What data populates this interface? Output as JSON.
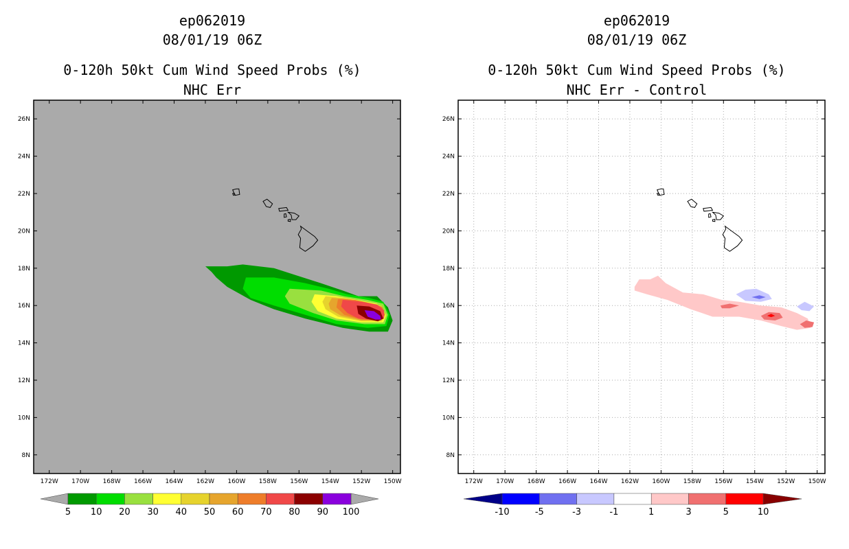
{
  "left_panel": {
    "title_line1": "ep062019",
    "title_line2": "08/01/19 06Z",
    "title_line3": "0-120h 50kt Cum Wind Speed Probs (%)",
    "title_line4": "NHC Err"
  },
  "right_panel": {
    "title_line1": "ep062019",
    "title_line2": "08/01/19 06Z",
    "title_line3": "0-120h 50kt Cum Wind Speed Probs (%)",
    "title_line4": "NHC Err - Control"
  },
  "chart_data": [
    {
      "type": "heatmap",
      "title": "0-120h 50kt Cum Wind Speed Probs (%)",
      "subtitle": "NHC Err",
      "storm": "ep062019",
      "time": "08/01/19 06Z",
      "background_color": "#aaaaaa",
      "xlim": [
        -173,
        -149.5
      ],
      "ylim": [
        7,
        27
      ],
      "x_ticks": [
        "172W",
        "170W",
        "168W",
        "166W",
        "164W",
        "162W",
        "160W",
        "158W",
        "156W",
        "154W",
        "152W",
        "150W"
      ],
      "y_ticks": [
        "8N",
        "10N",
        "12N",
        "14N",
        "16N",
        "18N",
        "20N",
        "22N",
        "24N",
        "26N"
      ],
      "grid": false,
      "colorbar": {
        "levels": [
          "5",
          "10",
          "20",
          "30",
          "40",
          "50",
          "60",
          "70",
          "80",
          "90",
          "100"
        ],
        "colors": [
          "#009900",
          "#00dd00",
          "#99e03f",
          "#ffff33",
          "#e6d32d",
          "#e6a52d",
          "#ee7d2a",
          "#f04848",
          "#8b0000",
          "#8a00dd"
        ],
        "under_color": "#aaaaaa",
        "over_color": "#aaaaaa"
      },
      "contour_regions": [
        {
          "level": "5-10",
          "lon": [
            -162.0,
            -150.0
          ],
          "lat": [
            14.5,
            18.2
          ]
        },
        {
          "level": "10-20",
          "lon": [
            -159.5,
            -150.2
          ],
          "lat": [
            14.8,
            17.6
          ]
        },
        {
          "level": "20-30",
          "lon": [
            -156.6,
            -150.3
          ],
          "lat": [
            15.0,
            16.9
          ]
        },
        {
          "level": "30-40",
          "lon": [
            -155.0,
            -150.4
          ],
          "lat": [
            15.1,
            16.6
          ]
        },
        {
          "level": "70-80",
          "lon": [
            -153.3,
            -150.4
          ],
          "lat": [
            15.1,
            16.3
          ]
        },
        {
          "level": "80-90",
          "lon": [
            -152.3,
            -150.5
          ],
          "lat": [
            15.1,
            16.0
          ]
        },
        {
          "level": "90-100",
          "lon": [
            -151.8,
            -150.6
          ],
          "lat": [
            15.2,
            15.8
          ]
        }
      ]
    },
    {
      "type": "heatmap",
      "title": "0-120h 50kt Cum Wind Speed Probs (%)",
      "subtitle": "NHC Err - Control",
      "storm": "ep062019",
      "time": "08/01/19 06Z",
      "background_color": "#ffffff",
      "xlim": [
        -173,
        -149.5
      ],
      "ylim": [
        7,
        27
      ],
      "x_ticks": [
        "172W",
        "170W",
        "168W",
        "166W",
        "164W",
        "162W",
        "160W",
        "158W",
        "156W",
        "154W",
        "152W",
        "150W"
      ],
      "y_ticks": [
        "8N",
        "10N",
        "12N",
        "14N",
        "16N",
        "18N",
        "20N",
        "22N",
        "24N",
        "26N"
      ],
      "grid": true,
      "colorbar": {
        "levels": [
          "-10",
          "-5",
          "-3",
          "-1",
          "1",
          "3",
          "5",
          "10"
        ],
        "colors": [
          "#0000ff",
          "#7070f0",
          "#c8c8ff",
          "#ffffff",
          "#ffc8c8",
          "#f07070",
          "#ff0000"
        ],
        "under_color": "#000088",
        "over_color": "#880000"
      },
      "contour_regions": [
        {
          "level": "1 to 3",
          "lon": [
            -161.7,
            -150.6
          ],
          "lat": [
            14.7,
            17.7
          ]
        },
        {
          "level": "3 to 5",
          "lon": [
            -156.2,
            -155.0
          ],
          "lat": [
            15.8,
            16.1
          ]
        },
        {
          "level": "3 to 5",
          "lon": [
            -153.6,
            -152.2
          ],
          "lat": [
            15.2,
            15.7
          ]
        },
        {
          "level": "3 to 5",
          "lon": [
            -151.1,
            -150.2
          ],
          "lat": [
            14.8,
            15.2
          ]
        },
        {
          "level": "5 to 10",
          "lon": [
            -153.2,
            -152.7
          ],
          "lat": [
            15.4,
            15.5
          ]
        },
        {
          "level": "-3 to -1",
          "lon": [
            -155.2,
            -152.9
          ],
          "lat": [
            16.2,
            16.9
          ]
        },
        {
          "level": "-5 to -3",
          "lon": [
            -154.2,
            -153.3
          ],
          "lat": [
            16.4,
            16.5
          ]
        },
        {
          "level": "-3 to -1",
          "lon": [
            -151.3,
            -150.2
          ],
          "lat": [
            15.7,
            16.2
          ]
        }
      ]
    }
  ]
}
